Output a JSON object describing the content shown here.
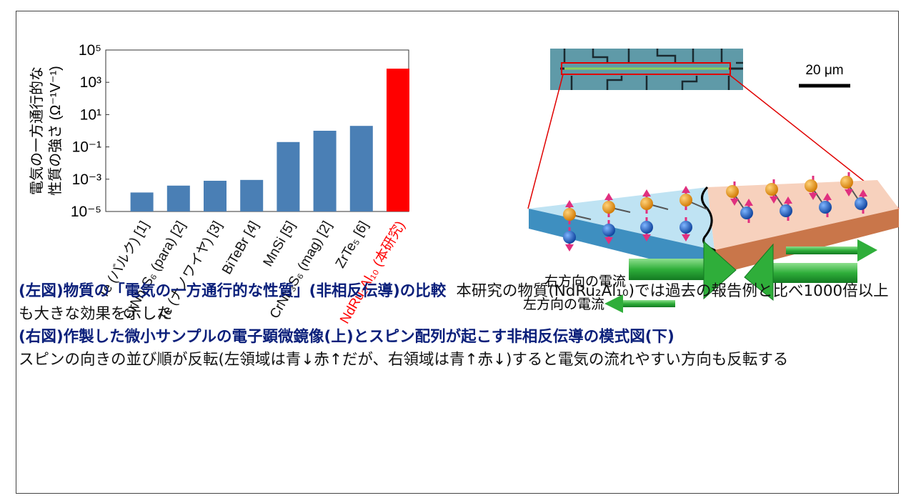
{
  "chart_data": {
    "type": "bar",
    "ylabel": [
      "電気の一方通行的な",
      "性質の強さ (Ω⁻¹V⁻¹)"
    ],
    "categories": [
      "Te (バルク) [1]",
      "CrNb₃S₆ (para) [2]",
      "Te (ナノワイヤ) [3]",
      "BiTeBr [4]",
      "MnSi [5]",
      "CrNb₃S₆ (mag) [2]",
      "ZrTe₅ [6]",
      "NdRu₂Al₁₀ (本研究)"
    ],
    "values": [
      0.00015,
      0.0004,
      0.0008,
      0.0009,
      0.2,
      1,
      2,
      7000
    ],
    "colors": [
      "#4a7fb5",
      "#4a7fb5",
      "#4a7fb5",
      "#4a7fb5",
      "#4a7fb5",
      "#4a7fb5",
      "#4a7fb5",
      "#ff0000"
    ],
    "label_colors": [
      "#111111",
      "#111111",
      "#111111",
      "#111111",
      "#111111",
      "#111111",
      "#111111",
      "#ff0000"
    ],
    "log_scale": true,
    "ylim": [
      1e-05,
      100000
    ],
    "yticks": [
      {
        "value": 1e-05,
        "label": "10⁻⁵"
      },
      {
        "value": 0.001,
        "label": "10⁻³"
      },
      {
        "value": 0.1,
        "label": "10⁻¹"
      },
      {
        "value": 10,
        "label": "10¹"
      },
      {
        "value": 1000,
        "label": "10³"
      },
      {
        "value": 100000,
        "label": "10⁵"
      }
    ]
  },
  "diagram": {
    "scale_bar": "20 μm",
    "labels": [
      "右方向の電流",
      "左方向の電流"
    ]
  },
  "caption": [
    {
      "bold": "(左図)物質の「電気の一方通行的な性質」(非相反伝導)の比較",
      "text": "本研究の物質(NdRu₂Al₁₀)では過去の報告例と比べ1000倍以上も大きな効果を示した"
    },
    {
      "bold": "(右図)作製した微小サンプルの電子顕微鏡像(上)とスピン配列が起こす非相反伝導の模式図(下)",
      "text": "スピンの向きの並び順が反転(左領域は青↓赤↑だが、右領域は青↑赤↓)すると電気の流れやすい方向も反転する"
    }
  ]
}
